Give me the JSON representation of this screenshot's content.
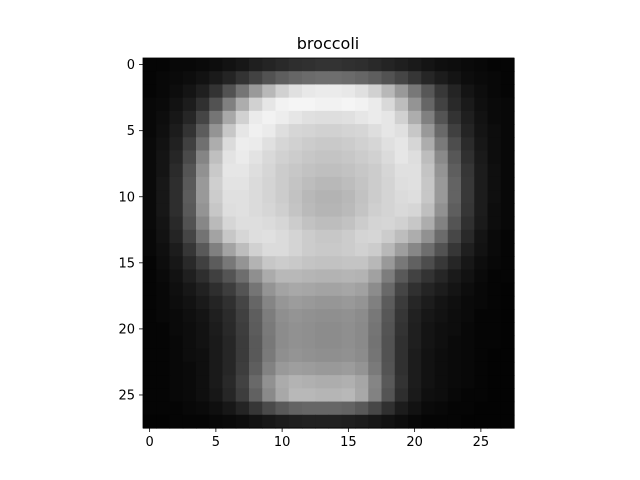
{
  "chart_data": {
    "type": "heatmap",
    "title": "broccoli",
    "xlabel": "",
    "ylabel": "",
    "colormap": "gray",
    "value_range": [
      0,
      1
    ],
    "xlim": [
      -0.5,
      27.5
    ],
    "ylim": [
      27.5,
      -0.5
    ],
    "x_ticks": [
      0,
      5,
      10,
      15,
      20,
      25
    ],
    "y_ticks": [
      0,
      5,
      10,
      15,
      20,
      25
    ],
    "grid": false,
    "rows": 28,
    "cols": 28,
    "values": [
      [
        0.02,
        0.02,
        0.03,
        0.03,
        0.04,
        0.05,
        0.07,
        0.09,
        0.12,
        0.14,
        0.16,
        0.18,
        0.19,
        0.2,
        0.2,
        0.19,
        0.18,
        0.16,
        0.14,
        0.12,
        0.1,
        0.08,
        0.06,
        0.05,
        0.04,
        0.03,
        0.02,
        0.02
      ],
      [
        0.02,
        0.03,
        0.04,
        0.05,
        0.07,
        0.1,
        0.14,
        0.2,
        0.26,
        0.32,
        0.37,
        0.4,
        0.42,
        0.43,
        0.43,
        0.42,
        0.4,
        0.37,
        0.32,
        0.27,
        0.21,
        0.15,
        0.11,
        0.08,
        0.05,
        0.04,
        0.03,
        0.02
      ],
      [
        0.02,
        0.03,
        0.05,
        0.08,
        0.12,
        0.2,
        0.32,
        0.46,
        0.6,
        0.72,
        0.82,
        0.88,
        0.91,
        0.92,
        0.92,
        0.91,
        0.88,
        0.82,
        0.72,
        0.6,
        0.47,
        0.34,
        0.22,
        0.14,
        0.08,
        0.05,
        0.03,
        0.02
      ],
      [
        0.03,
        0.04,
        0.07,
        0.11,
        0.19,
        0.32,
        0.5,
        0.68,
        0.82,
        0.9,
        0.95,
        0.96,
        0.96,
        0.95,
        0.95,
        0.96,
        0.95,
        0.92,
        0.85,
        0.74,
        0.58,
        0.4,
        0.26,
        0.16,
        0.1,
        0.06,
        0.04,
        0.03
      ],
      [
        0.03,
        0.05,
        0.09,
        0.15,
        0.27,
        0.46,
        0.66,
        0.82,
        0.92,
        0.95,
        0.93,
        0.9,
        0.88,
        0.87,
        0.87,
        0.88,
        0.9,
        0.92,
        0.9,
        0.82,
        0.68,
        0.5,
        0.33,
        0.2,
        0.12,
        0.07,
        0.04,
        0.03
      ],
      [
        0.03,
        0.06,
        0.11,
        0.2,
        0.36,
        0.58,
        0.78,
        0.9,
        0.94,
        0.92,
        0.87,
        0.84,
        0.83,
        0.82,
        0.82,
        0.83,
        0.84,
        0.87,
        0.9,
        0.88,
        0.78,
        0.6,
        0.41,
        0.25,
        0.14,
        0.08,
        0.05,
        0.03
      ],
      [
        0.04,
        0.07,
        0.13,
        0.25,
        0.44,
        0.68,
        0.86,
        0.93,
        0.92,
        0.88,
        0.84,
        0.82,
        0.8,
        0.79,
        0.79,
        0.8,
        0.82,
        0.84,
        0.88,
        0.9,
        0.84,
        0.68,
        0.48,
        0.3,
        0.17,
        0.09,
        0.05,
        0.03
      ],
      [
        0.04,
        0.08,
        0.15,
        0.29,
        0.52,
        0.75,
        0.89,
        0.92,
        0.89,
        0.85,
        0.82,
        0.8,
        0.78,
        0.77,
        0.77,
        0.78,
        0.8,
        0.82,
        0.86,
        0.9,
        0.87,
        0.74,
        0.54,
        0.34,
        0.19,
        0.1,
        0.05,
        0.03
      ],
      [
        0.04,
        0.08,
        0.17,
        0.33,
        0.57,
        0.79,
        0.9,
        0.9,
        0.87,
        0.84,
        0.8,
        0.78,
        0.76,
        0.75,
        0.75,
        0.76,
        0.78,
        0.8,
        0.84,
        0.88,
        0.88,
        0.77,
        0.58,
        0.37,
        0.21,
        0.11,
        0.06,
        0.03
      ],
      [
        0.04,
        0.09,
        0.18,
        0.35,
        0.6,
        0.81,
        0.89,
        0.89,
        0.86,
        0.83,
        0.8,
        0.77,
        0.74,
        0.72,
        0.72,
        0.74,
        0.77,
        0.8,
        0.83,
        0.87,
        0.88,
        0.78,
        0.6,
        0.39,
        0.22,
        0.11,
        0.06,
        0.03
      ],
      [
        0.04,
        0.09,
        0.18,
        0.36,
        0.6,
        0.8,
        0.88,
        0.88,
        0.86,
        0.83,
        0.8,
        0.76,
        0.72,
        0.7,
        0.7,
        0.72,
        0.76,
        0.8,
        0.83,
        0.86,
        0.87,
        0.78,
        0.6,
        0.39,
        0.22,
        0.11,
        0.06,
        0.03
      ],
      [
        0.04,
        0.09,
        0.18,
        0.35,
        0.58,
        0.78,
        0.87,
        0.88,
        0.86,
        0.84,
        0.81,
        0.77,
        0.73,
        0.71,
        0.71,
        0.73,
        0.77,
        0.81,
        0.83,
        0.85,
        0.84,
        0.75,
        0.57,
        0.37,
        0.21,
        0.11,
        0.05,
        0.03
      ],
      [
        0.04,
        0.08,
        0.16,
        0.32,
        0.53,
        0.73,
        0.84,
        0.87,
        0.87,
        0.86,
        0.84,
        0.8,
        0.76,
        0.74,
        0.74,
        0.76,
        0.8,
        0.83,
        0.84,
        0.82,
        0.78,
        0.68,
        0.51,
        0.33,
        0.19,
        0.1,
        0.05,
        0.03
      ],
      [
        0.03,
        0.07,
        0.14,
        0.27,
        0.45,
        0.64,
        0.78,
        0.84,
        0.87,
        0.88,
        0.86,
        0.83,
        0.8,
        0.78,
        0.78,
        0.8,
        0.83,
        0.84,
        0.8,
        0.74,
        0.68,
        0.57,
        0.42,
        0.28,
        0.16,
        0.08,
        0.04,
        0.02
      ],
      [
        0.03,
        0.06,
        0.11,
        0.21,
        0.35,
        0.5,
        0.64,
        0.74,
        0.82,
        0.86,
        0.86,
        0.83,
        0.8,
        0.79,
        0.79,
        0.8,
        0.82,
        0.8,
        0.72,
        0.62,
        0.53,
        0.43,
        0.32,
        0.21,
        0.12,
        0.07,
        0.04,
        0.02
      ],
      [
        0.02,
        0.05,
        0.09,
        0.16,
        0.25,
        0.36,
        0.47,
        0.58,
        0.7,
        0.78,
        0.8,
        0.79,
        0.77,
        0.76,
        0.76,
        0.77,
        0.77,
        0.72,
        0.6,
        0.47,
        0.38,
        0.3,
        0.22,
        0.15,
        0.09,
        0.05,
        0.03,
        0.02
      ],
      [
        0.02,
        0.04,
        0.07,
        0.12,
        0.18,
        0.25,
        0.33,
        0.43,
        0.56,
        0.67,
        0.72,
        0.72,
        0.71,
        0.7,
        0.7,
        0.71,
        0.7,
        0.63,
        0.49,
        0.35,
        0.26,
        0.2,
        0.15,
        0.1,
        0.07,
        0.04,
        0.02,
        0.02
      ],
      [
        0.02,
        0.03,
        0.06,
        0.09,
        0.13,
        0.18,
        0.24,
        0.33,
        0.46,
        0.58,
        0.64,
        0.66,
        0.65,
        0.64,
        0.64,
        0.65,
        0.63,
        0.55,
        0.41,
        0.27,
        0.19,
        0.14,
        0.11,
        0.08,
        0.05,
        0.03,
        0.02,
        0.01
      ],
      [
        0.02,
        0.03,
        0.05,
        0.07,
        0.1,
        0.14,
        0.19,
        0.27,
        0.4,
        0.52,
        0.59,
        0.61,
        0.6,
        0.59,
        0.59,
        0.6,
        0.58,
        0.5,
        0.36,
        0.23,
        0.15,
        0.11,
        0.08,
        0.06,
        0.04,
        0.03,
        0.02,
        0.01
      ],
      [
        0.02,
        0.03,
        0.04,
        0.06,
        0.08,
        0.12,
        0.17,
        0.25,
        0.37,
        0.49,
        0.56,
        0.58,
        0.57,
        0.56,
        0.56,
        0.57,
        0.55,
        0.47,
        0.34,
        0.21,
        0.13,
        0.09,
        0.07,
        0.05,
        0.04,
        0.02,
        0.02,
        0.01
      ],
      [
        0.02,
        0.02,
        0.04,
        0.05,
        0.07,
        0.11,
        0.16,
        0.24,
        0.36,
        0.48,
        0.55,
        0.57,
        0.56,
        0.55,
        0.55,
        0.56,
        0.54,
        0.46,
        0.33,
        0.2,
        0.12,
        0.08,
        0.06,
        0.05,
        0.03,
        0.02,
        0.02,
        0.01
      ],
      [
        0.02,
        0.02,
        0.03,
        0.05,
        0.07,
        0.1,
        0.15,
        0.23,
        0.35,
        0.47,
        0.55,
        0.57,
        0.56,
        0.55,
        0.55,
        0.56,
        0.54,
        0.45,
        0.32,
        0.19,
        0.12,
        0.08,
        0.06,
        0.04,
        0.03,
        0.02,
        0.02,
        0.01
      ],
      [
        0.02,
        0.02,
        0.03,
        0.05,
        0.06,
        0.1,
        0.15,
        0.23,
        0.35,
        0.48,
        0.56,
        0.58,
        0.57,
        0.56,
        0.56,
        0.57,
        0.55,
        0.46,
        0.32,
        0.19,
        0.11,
        0.07,
        0.05,
        0.04,
        0.03,
        0.02,
        0.01,
        0.01
      ],
      [
        0.02,
        0.02,
        0.03,
        0.04,
        0.06,
        0.1,
        0.15,
        0.24,
        0.37,
        0.51,
        0.6,
        0.62,
        0.61,
        0.6,
        0.6,
        0.61,
        0.58,
        0.48,
        0.33,
        0.19,
        0.11,
        0.07,
        0.05,
        0.04,
        0.03,
        0.02,
        0.01,
        0.01
      ],
      [
        0.02,
        0.02,
        0.03,
        0.04,
        0.06,
        0.1,
        0.16,
        0.26,
        0.41,
        0.57,
        0.67,
        0.7,
        0.69,
        0.68,
        0.68,
        0.69,
        0.65,
        0.52,
        0.35,
        0.2,
        0.11,
        0.07,
        0.05,
        0.04,
        0.03,
        0.02,
        0.01,
        0.01
      ],
      [
        0.02,
        0.02,
        0.03,
        0.04,
        0.06,
        0.09,
        0.15,
        0.24,
        0.38,
        0.54,
        0.66,
        0.72,
        0.72,
        0.71,
        0.71,
        0.72,
        0.66,
        0.51,
        0.33,
        0.18,
        0.1,
        0.06,
        0.05,
        0.03,
        0.02,
        0.02,
        0.01,
        0.01
      ],
      [
        0.02,
        0.02,
        0.02,
        0.03,
        0.04,
        0.06,
        0.09,
        0.14,
        0.21,
        0.29,
        0.35,
        0.39,
        0.4,
        0.4,
        0.4,
        0.39,
        0.35,
        0.28,
        0.19,
        0.11,
        0.07,
        0.04,
        0.03,
        0.02,
        0.02,
        0.01,
        0.01,
        0.01
      ],
      [
        0.01,
        0.01,
        0.02,
        0.02,
        0.02,
        0.03,
        0.04,
        0.05,
        0.07,
        0.09,
        0.11,
        0.12,
        0.13,
        0.13,
        0.13,
        0.12,
        0.11,
        0.09,
        0.07,
        0.05,
        0.03,
        0.02,
        0.02,
        0.02,
        0.01,
        0.01,
        0.01,
        0.01
      ]
    ]
  }
}
